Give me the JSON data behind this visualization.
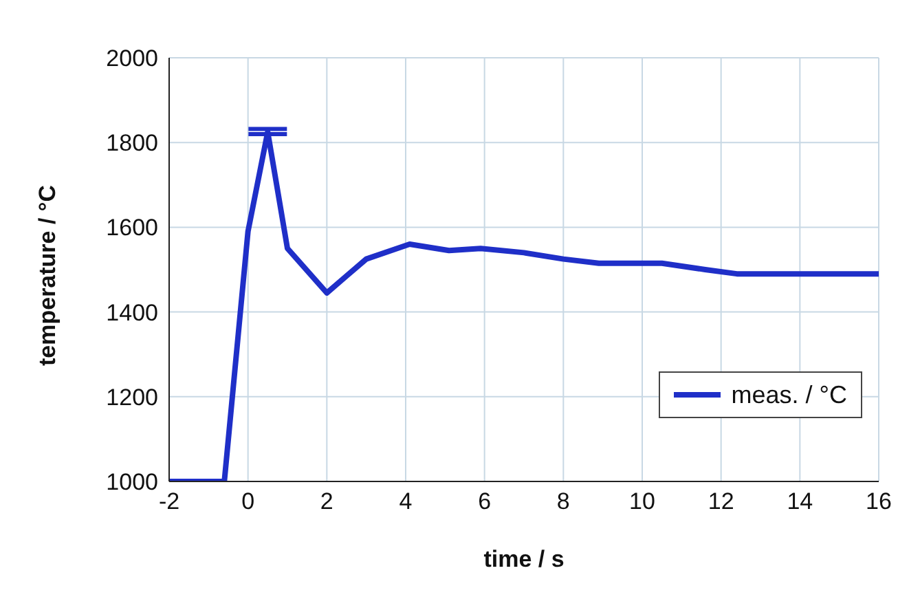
{
  "chart_data": {
    "type": "line",
    "xlabel": "time / s",
    "ylabel": "temperature / °C",
    "x": [
      -2,
      -0.6,
      0,
      0.5,
      1,
      2,
      3,
      4.1,
      5.1,
      5.9,
      7,
      8,
      8.9,
      10.5,
      11.6,
      12.4,
      13.1,
      16
    ],
    "series": [
      {
        "name": "meas. / °C",
        "color": "#1f2fc8",
        "values": [
          1000,
          1000,
          1590,
          1825,
          1550,
          1445,
          1525,
          1560,
          1545,
          1550,
          1540,
          1525,
          1515,
          1515,
          1500,
          1490,
          1490,
          1490
        ],
        "errors": [
          null,
          null,
          null,
          [
            1820,
            1832
          ],
          null,
          null,
          null,
          null,
          null,
          null,
          null,
          null,
          null,
          null,
          null,
          null,
          null,
          null
        ]
      }
    ],
    "xlim": [
      -2,
      16
    ],
    "xticks": [
      -2,
      0,
      2,
      4,
      6,
      8,
      10,
      12,
      14,
      16
    ],
    "ylim": [
      1000,
      2000
    ],
    "yticks": [
      1000,
      1200,
      1400,
      1600,
      1800,
      2000
    ],
    "grid": true,
    "legend": "bottom right",
    "marker": "none",
    "line_style": "solid"
  }
}
